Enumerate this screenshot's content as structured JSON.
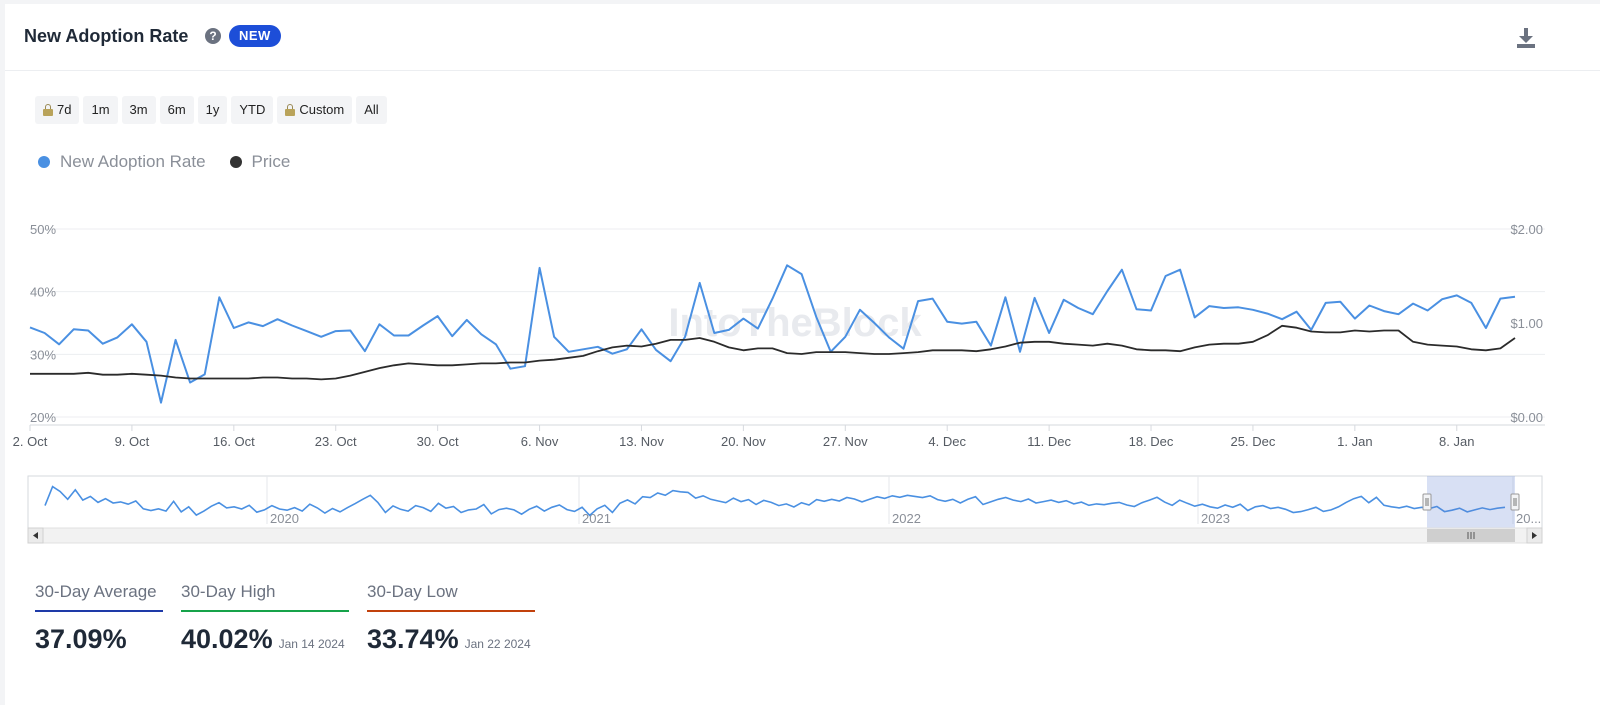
{
  "header": {
    "title": "New Adoption Rate",
    "help_icon": "question-circle-icon",
    "badge": "NEW",
    "download_icon": "download-icon"
  },
  "range_buttons": [
    {
      "label": "7d",
      "locked": true
    },
    {
      "label": "1m",
      "locked": false
    },
    {
      "label": "3m",
      "locked": false
    },
    {
      "label": "6m",
      "locked": false
    },
    {
      "label": "1y",
      "locked": false
    },
    {
      "label": "YTD",
      "locked": false
    },
    {
      "label": "Custom",
      "locked": true
    },
    {
      "label": "All",
      "locked": false
    }
  ],
  "watermark": "IntoTheBlock",
  "chart_data": {
    "type": "line",
    "x_ticks": [
      "2. Oct",
      "9. Oct",
      "16. Oct",
      "23. Oct",
      "30. Oct",
      "6. Nov",
      "13. Nov",
      "20. Nov",
      "27. Nov",
      "4. Dec",
      "11. Dec",
      "18. Dec",
      "25. Dec",
      "1. Jan",
      "8. Jan"
    ],
    "x_range": [
      "2023-10-02",
      "2024-01-12"
    ],
    "y_left": {
      "ticks": [
        "20%",
        "30%",
        "40%",
        "50%"
      ],
      "range": [
        20,
        50
      ]
    },
    "y_right": {
      "ticks": [
        "$0.00",
        "$1.00",
        "$2.00"
      ],
      "range": [
        0,
        2
      ]
    },
    "legend_position": "top-left",
    "grid": true,
    "series": [
      {
        "name": "New Adoption Rate",
        "color": "#4a90e2",
        "axis": "left",
        "values": [
          34.3,
          33.4,
          31.6,
          34.0,
          33.8,
          31.7,
          32.7,
          34.8,
          32.0,
          22.3,
          32.3,
          25.5,
          26.8,
          39.1,
          34.2,
          35.1,
          34.5,
          35.6,
          34.6,
          33.7,
          32.8,
          33.7,
          33.8,
          30.5,
          34.8,
          33.0,
          33.0,
          34.6,
          36.1,
          32.9,
          35.5,
          33.2,
          31.6,
          27.7,
          28.1,
          43.8,
          32.8,
          30.4,
          30.8,
          31.2,
          30.1,
          30.8,
          34.0,
          30.7,
          28.9,
          32.8,
          41.4,
          33.4,
          33.9,
          35.7,
          34.1,
          38.9,
          44.2,
          42.8,
          36.0,
          30.4,
          32.8,
          37.1,
          35.0,
          32.7,
          30.9,
          38.5,
          38.9,
          35.2,
          34.9,
          35.2,
          31.4,
          39.1,
          30.4,
          39.0,
          33.4,
          38.7,
          37.4,
          36.4,
          40.1,
          43.5,
          37.2,
          37.0,
          42.5,
          43.5,
          35.9,
          37.7,
          37.4,
          37.5,
          37.1,
          36.5,
          35.6,
          36.8,
          33.9,
          38.2,
          38.4,
          35.7,
          37.8,
          36.9,
          36.4,
          38.1,
          37.0,
          38.8,
          39.4,
          38.2,
          34.2,
          38.9,
          39.2
        ]
      },
      {
        "name": "Price",
        "color": "#2b2b2b",
        "axis": "right",
        "values": [
          0.46,
          0.46,
          0.46,
          0.46,
          0.47,
          0.45,
          0.45,
          0.46,
          0.45,
          0.44,
          0.42,
          0.41,
          0.41,
          0.41,
          0.41,
          0.41,
          0.42,
          0.42,
          0.41,
          0.41,
          0.4,
          0.41,
          0.44,
          0.48,
          0.52,
          0.55,
          0.57,
          0.56,
          0.55,
          0.55,
          0.56,
          0.57,
          0.57,
          0.58,
          0.58,
          0.6,
          0.61,
          0.63,
          0.65,
          0.7,
          0.74,
          0.76,
          0.75,
          0.78,
          0.82,
          0.82,
          0.84,
          0.8,
          0.74,
          0.71,
          0.73,
          0.73,
          0.68,
          0.67,
          0.69,
          0.69,
          0.69,
          0.68,
          0.67,
          0.67,
          0.68,
          0.69,
          0.71,
          0.71,
          0.71,
          0.7,
          0.72,
          0.75,
          0.79,
          0.8,
          0.8,
          0.78,
          0.77,
          0.76,
          0.78,
          0.76,
          0.72,
          0.71,
          0.71,
          0.7,
          0.74,
          0.77,
          0.78,
          0.78,
          0.8,
          0.87,
          0.97,
          0.95,
          0.91,
          0.9,
          0.9,
          0.92,
          0.91,
          0.92,
          0.92,
          0.8,
          0.77,
          0.76,
          0.75,
          0.72,
          0.71,
          0.73,
          0.84
        ]
      }
    ]
  },
  "navigator": {
    "labels": [
      "2020",
      "2021",
      "2022",
      "2023",
      "20..."
    ],
    "series_color": "#4a90e2",
    "values": [
      38.4,
      45.0,
      43.3,
      40.6,
      43.9,
      40.3,
      41.6,
      39.5,
      40.8,
      39.3,
      39.7,
      38.9,
      40.0,
      37.3,
      36.7,
      37.3,
      36.5,
      39.9,
      36.2,
      38.0,
      35.1,
      36.5,
      38.2,
      39.4,
      37.6,
      38.0,
      37.2,
      38.5,
      36.1,
      36.9,
      38.4,
      37.2,
      36.8,
      37.7,
      36.5,
      38.9,
      37.6,
      35.8,
      37.4,
      36.2,
      37.7,
      39.1,
      40.6,
      42.0,
      39.5,
      36.0,
      38.3,
      37.1,
      36.5,
      38.4,
      37.7,
      36.4,
      39.2,
      37.5,
      38.1,
      36.0,
      36.9,
      37.2,
      38.8,
      35.5,
      37.0,
      37.5,
      36.9,
      35.4,
      37.1,
      38.2,
      36.5,
      37.8,
      38.6,
      37.0,
      36.4,
      37.8,
      35.0,
      37.3,
      38.5,
      36.0,
      39.2,
      40.4,
      39.0,
      41.5,
      41.2,
      42.8,
      42.0,
      43.6,
      43.2,
      43.0,
      41.0,
      41.8,
      40.6,
      40.0,
      39.4,
      41.0,
      39.8,
      40.5,
      38.8,
      40.2,
      39.5,
      38.4,
      39.0,
      37.9,
      39.4,
      38.6,
      40.5,
      39.9,
      40.6,
      40.0,
      41.2,
      40.7,
      39.7,
      40.6,
      41.5,
      40.9,
      41.8,
      41.3,
      42.0,
      41.6,
      41.2,
      41.8,
      40.5,
      39.9,
      40.6,
      39.3,
      40.6,
      41.5,
      38.8,
      39.7,
      40.6,
      41.2,
      40.3,
      39.8,
      40.7,
      39.3,
      39.8,
      40.3,
      39.5,
      40.1,
      39.0,
      39.6,
      38.5,
      39.0,
      38.7,
      39.2,
      39.5,
      38.6,
      38.1,
      39.4,
      40.3,
      41.3,
      39.6,
      38.5,
      40.3,
      39.2,
      38.2,
      38.9,
      38.0,
      37.5,
      38.6,
      37.8,
      38.9,
      36.7,
      38.0,
      38.4,
      37.4,
      37.8,
      37.1,
      36.0,
      36.3,
      37.0,
      37.8,
      36.4,
      36.9,
      38.0,
      39.5,
      40.8,
      41.6,
      39.4,
      41.3,
      38.5,
      38.0,
      37.6,
      38.2,
      37.4,
      37.8,
      37.4,
      38.1,
      36.3,
      36.8,
      37.5,
      36.2,
      36.9,
      37.6,
      37.0,
      37.5,
      37.8
    ]
  },
  "stats": [
    {
      "label": "30-Day Average",
      "value": "37.09%",
      "date": "",
      "color": "#1e3aa8"
    },
    {
      "label": "30-Day High",
      "value": "40.02%",
      "date": "Jan 14 2024",
      "color": "#16a34a"
    },
    {
      "label": "30-Day Low",
      "value": "33.74%",
      "date": "Jan 22 2024",
      "color": "#c2410c"
    }
  ]
}
